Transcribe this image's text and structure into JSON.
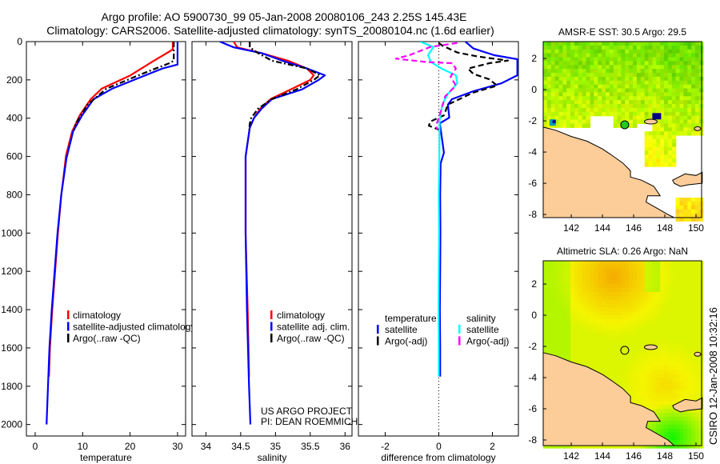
{
  "header": {
    "title_line1": "Argo profile: AO 5900730_99 05-Jan-2008 20080106_243 2.25S 145.43E",
    "title_line2": "Climatology: CARS2006. Satellite-adjusted climatology: synTS_20080104.nc (1.6d earlier)"
  },
  "credits": {
    "project": "US ARGO PROJECT",
    "pi": "PI: DEAN ROEMMICH",
    "stamp": "CSIRO 12-Jan-2008 10:32:16"
  },
  "colors": {
    "climatology": "#ff0000",
    "satellite": "#0000ff",
    "argo": "#000000",
    "sal_satellite": "#00ffff",
    "sal_argo": "#ff00ff",
    "land": "#fccc99"
  },
  "chart_data": [
    {
      "type": "line",
      "id": "temperature",
      "xlabel": "temperature",
      "ylabel": "",
      "xlim": [
        -1.85,
        31.7
      ],
      "ylim": [
        0,
        2060
      ],
      "y_inverted": true,
      "xticks": [
        0,
        10,
        20,
        30
      ],
      "xtick_labels": [
        "0",
        "10",
        "20",
        "30"
      ],
      "yticks": [
        0,
        200,
        400,
        600,
        800,
        1000,
        1200,
        1400,
        1600,
        1800,
        2000
      ],
      "ytick_labels": [
        "0",
        "200",
        "400",
        "600",
        "800",
        "1000",
        "1200",
        "1400",
        "1600",
        "1800",
        "2000"
      ],
      "legend": [
        "climatology",
        "satellite-adjusted climatology",
        "Argo(..raw -QC)"
      ],
      "series": [
        {
          "name": "climatology",
          "color": "#ff0000",
          "style": "solid",
          "depth": [
            0,
            40,
            50,
            106,
            176,
            246,
            301,
            385,
            469,
            595,
            700,
            800,
            1000,
            1200,
            1400,
            1600,
            1750
          ],
          "values": [
            29.0,
            29.0,
            28.4,
            24.6,
            20.1,
            14.0,
            11.7,
            9.4,
            7.8,
            6.5,
            6.0,
            5.5,
            4.8,
            4.2,
            3.6,
            3.1,
            2.9
          ]
        },
        {
          "name": "satellite-adjusted climatology",
          "color": "#0000ff",
          "style": "solid",
          "depth": [
            0,
            120,
            141,
            190,
            246,
            301,
            385,
            469,
            609,
            800,
            1000,
            1200,
            1400,
            1600,
            1800,
            2000
          ],
          "values": [
            30.0,
            30.0,
            26.8,
            21.8,
            16.2,
            12.3,
            9.9,
            8.0,
            6.6,
            5.5,
            4.7,
            4.1,
            3.5,
            3.0,
            2.7,
            2.4
          ]
        },
        {
          "name": "Argo(..raw -QC)",
          "color": "#000000",
          "style": "dashdot",
          "depth": [
            0,
            100,
            113,
            148,
            176,
            246,
            330,
            427,
            460
          ],
          "values": [
            29.2,
            29.2,
            28.3,
            24.6,
            21.8,
            15.0,
            11.0,
            8.6,
            8.2
          ]
        }
      ]
    },
    {
      "type": "line",
      "id": "salinity",
      "xlabel": "salinity",
      "xlim": [
        33.8,
        36.1
      ],
      "ylim": [
        0,
        2060
      ],
      "y_inverted": true,
      "xticks": [
        34,
        34.5,
        35,
        35.5,
        36
      ],
      "xtick_labels": [
        "34",
        "34.5",
        "35",
        "35.5",
        "36"
      ],
      "legend": [
        "climatology",
        "satellite adj. clim.",
        "Argo(..raw -QC)"
      ],
      "series": [
        {
          "name": "climatology",
          "color": "#ff0000",
          "style": "solid",
          "depth": [
            0,
            30,
            60,
            100,
            140,
            176,
            200,
            250,
            300,
            350,
            400,
            450,
            600,
            1000,
            1400,
            1750
          ],
          "values": [
            34.4,
            34.45,
            34.8,
            35.18,
            35.45,
            35.55,
            35.5,
            35.22,
            34.93,
            34.78,
            34.69,
            34.63,
            34.57,
            34.57,
            34.6,
            34.62
          ]
        },
        {
          "name": "satellite adj. clim.",
          "color": "#0000ff",
          "style": "solid",
          "depth": [
            0,
            30,
            60,
            100,
            140,
            176,
            200,
            250,
            300,
            350,
            400,
            450,
            600,
            1000,
            1400,
            1800,
            2000
          ],
          "values": [
            34.2,
            34.4,
            34.8,
            35.1,
            35.45,
            35.71,
            35.62,
            35.38,
            34.95,
            34.8,
            34.69,
            34.63,
            34.57,
            34.57,
            34.59,
            34.62,
            34.64
          ]
        },
        {
          "name": "Argo(..raw -QC)",
          "color": "#000000",
          "style": "dashdot",
          "depth": [
            0,
            30,
            60,
            100,
            140,
            176,
            200,
            250,
            300,
            350,
            400,
            430,
            460
          ],
          "values": [
            34.63,
            34.63,
            34.75,
            34.95,
            35.45,
            35.64,
            35.55,
            35.3,
            34.95,
            34.75,
            34.65,
            34.63,
            34.62
          ]
        }
      ]
    },
    {
      "type": "line",
      "id": "difference",
      "xlabel": "difference from climatology",
      "xlim": [
        -3,
        2.97
      ],
      "ylim": [
        0,
        2060
      ],
      "y_inverted": true,
      "xticks": [
        -2,
        0,
        2
      ],
      "xtick_labels": [
        "-2",
        "0",
        "2"
      ],
      "zero_line": true,
      "legend_headers": [
        "temperature",
        "salinity"
      ],
      "legend": [
        "satellite",
        "Argo(-adj)",
        "satellite",
        "Argo(-adj)"
      ],
      "series": [
        {
          "name": "temperature satellite",
          "color": "#0000ff",
          "style": "solid",
          "depth": [
            0,
            36,
            71,
            92,
            176,
            218,
            259,
            301,
            329,
            397,
            427,
            580,
            636,
            800,
            1000,
            1200,
            1400,
            1600,
            1750
          ],
          "values": [
            0.99,
            1.29,
            2.07,
            2.93,
            2.93,
            2.33,
            1.29,
            0.49,
            0.34,
            0.39,
            0.04,
            0.19,
            0.07,
            0.05,
            0.06,
            0.05,
            0.04,
            0.05,
            0.05
          ]
        },
        {
          "name": "temperature Argo(-adj)",
          "color": "#000000",
          "style": "dashed",
          "depth": [
            7,
            21,
            57,
            78,
            99,
            113,
            141,
            169,
            197,
            230,
            266,
            329,
            385,
            418,
            439,
            460
          ],
          "values": [
            0.0,
            0.13,
            0.69,
            1.47,
            2.58,
            1.88,
            1.09,
            1.29,
            1.88,
            2.18,
            1.29,
            0.34,
            0.19,
            -0.32,
            -0.37,
            0.0
          ]
        },
        {
          "name": "salinity satellite",
          "color": "#00ffff",
          "style": "solid",
          "depth": [
            0,
            28,
            71,
            106,
            141,
            176,
            218,
            273,
            329,
            413,
            600,
            800,
            1000,
            1200,
            1400,
            1600,
            1750
          ],
          "values": [
            -0.7,
            -0.2,
            -0.4,
            -0.3,
            0.1,
            0.64,
            0.69,
            0.34,
            0.13,
            0.03,
            0.02,
            0.0,
            0.01,
            0.0,
            -0.01,
            0.0,
            0.0
          ]
        },
        {
          "name": "salinity Argo(-adj)",
          "color": "#ff00ff",
          "style": "dashed",
          "depth": [
            7,
            28,
            71,
            89,
            106,
            113,
            141,
            183,
            230,
            286,
            357,
            439,
            460
          ],
          "values": [
            0.69,
            -0.32,
            -1.1,
            -1.6,
            -0.5,
            0.49,
            0.64,
            0.44,
            0.64,
            0.24,
            0.09,
            -0.1,
            -0.05
          ]
        }
      ]
    },
    {
      "type": "heatmap",
      "id": "sst-map",
      "title": "AMSR-E SST: 30.5 Argo: 29.5",
      "xlim": [
        140.2,
        150.36
      ],
      "ylim": [
        -8.2,
        3.08
      ],
      "xticks": [
        142,
        144,
        146,
        148,
        150
      ],
      "xtick_labels": [
        "142",
        "144",
        "146",
        "148",
        "150"
      ],
      "yticks": [
        2,
        0,
        -2,
        -4,
        -6,
        -8
      ],
      "ytick_labels": [
        "2",
        "0",
        "-2",
        "-4",
        "-6",
        "-8"
      ],
      "argo_position": [
        145.43,
        -2.25
      ],
      "argo_value": 29.5,
      "satellite_value": 30.5
    },
    {
      "type": "heatmap",
      "id": "sla-map",
      "title": "Altimetric SLA: 0.26 Argo: NaN",
      "xlim": [
        140.2,
        150.36
      ],
      "ylim": [
        -8.36,
        3.49
      ],
      "xticks": [
        142,
        144,
        146,
        148,
        150
      ],
      "xtick_labels": [
        "142",
        "144",
        "146",
        "148",
        "150"
      ],
      "yticks": [
        2,
        0,
        -2,
        -4,
        -6,
        -8
      ],
      "ytick_labels": [
        "2",
        "0",
        "-2",
        "-4",
        "-6",
        "-8"
      ],
      "argo_position": [
        145.43,
        -2.25
      ],
      "satellite_value": 0.26,
      "argo_value": "NaN"
    }
  ]
}
